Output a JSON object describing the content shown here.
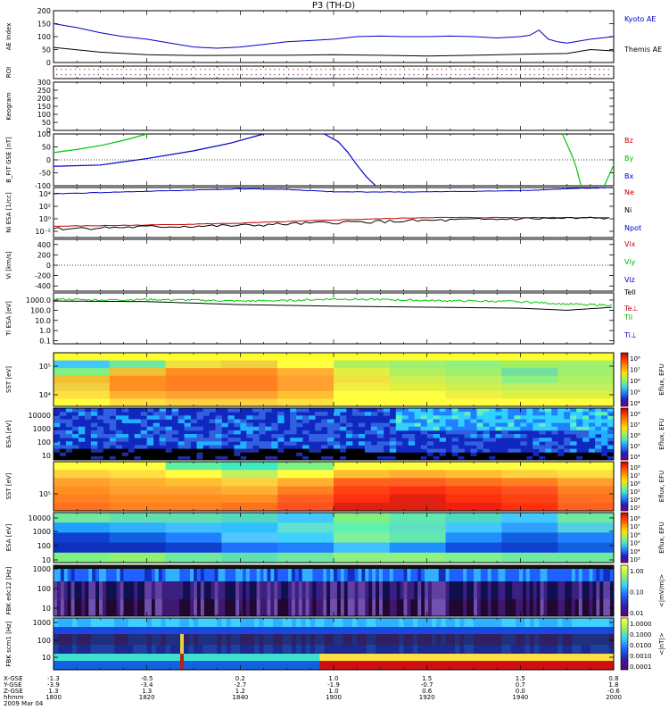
{
  "title": "P3 (TH-D)",
  "date_label": "2009 Mar 04",
  "chart_data": {
    "type": "line",
    "title": "P3 (TH-D)",
    "x": {
      "label": "hhmm",
      "ticks": [
        "1800",
        "1820",
        "1840",
        "1900",
        "1920",
        "1940",
        "2000"
      ],
      "range": [
        1800,
        2000
      ],
      "ephemeris": [
        {
          "name": "X-GSE",
          "values": [
            "-1.3",
            "-0.5",
            "0.2",
            "1.0",
            "1.5",
            "1.5",
            "0.8"
          ]
        },
        {
          "name": "Y-GSE",
          "values": [
            "-3.9",
            "-3.4",
            "-2.7",
            "-1.9",
            "-0.7",
            "0.7",
            "1.8"
          ]
        },
        {
          "name": "Z-GSE",
          "values": [
            "1.3",
            "1.3",
            "1.2",
            "1.0",
            "0.6",
            "0.0",
            "-0.6"
          ]
        }
      ]
    },
    "panels": [
      {
        "id": "ae",
        "ylabel": "AE Index",
        "ylim": [
          0,
          200
        ],
        "yticks": [
          "200",
          "150",
          "100",
          "50",
          "0"
        ],
        "legend": [
          {
            "name": "Kyoto AE",
            "color": "#0000c8"
          },
          {
            "name": "Themis AE",
            "color": "#000000"
          }
        ],
        "series": [
          {
            "name": "Kyoto AE",
            "color": "#0000c8",
            "x": [
              1800,
              1805,
              1810,
              1815,
              1820,
              1825,
              1830,
              1835,
              1840,
              1845,
              1850,
              1855,
              1900,
              1905,
              1910,
              1915,
              1920,
              1925,
              1930,
              1935,
              1940,
              1942,
              1944,
              1946,
              1948,
              1950,
              1955,
              2000
            ],
            "y": [
              150,
              135,
              115,
              100,
              90,
              75,
              60,
              55,
              60,
              70,
              80,
              85,
              90,
              100,
              102,
              100,
              100,
              102,
              100,
              95,
              100,
              105,
              125,
              90,
              80,
              75,
              90,
              100
            ]
          },
          {
            "name": "Themis AE",
            "color": "#000000",
            "x": [
              1800,
              1810,
              1820,
              1830,
              1840,
              1850,
              1900,
              1910,
              1920,
              1930,
              1940,
              1950,
              1955,
              2000
            ],
            "y": [
              58,
              40,
              30,
              27,
              28,
              28,
              30,
              28,
              25,
              28,
              32,
              35,
              50,
              45
            ]
          }
        ]
      },
      {
        "id": "roi",
        "ylabel": "ROI"
      },
      {
        "id": "keogram",
        "ylabel": "Keogram",
        "ylim": [
          0,
          300
        ],
        "yticks": [
          "300",
          "250",
          "200",
          "150",
          "100",
          "50",
          "0"
        ]
      },
      {
        "id": "bfit",
        "ylabel": "B_FIT GSE [nT]",
        "ylim": [
          -100,
          100
        ],
        "yticks": [
          "100",
          "50",
          "0",
          "-50",
          "-100"
        ],
        "legend": [
          {
            "name": "Bz",
            "color": "#c80000"
          },
          {
            "name": "By",
            "color": "#00b400"
          },
          {
            "name": "Bx",
            "color": "#0000c8"
          }
        ],
        "series": [
          {
            "name": "By",
            "color": "#00c800",
            "segments": [
              {
                "x": [
                  1800,
                  1805,
                  1810,
                  1815,
                  1820
                ],
                "y": [
                  28,
                  40,
                  55,
                  75,
                  100
                ]
              },
              {
                "x": [
                  1949,
                  1950,
                  1951,
                  1952,
                  1953
                ],
                "y": [
                  100,
                  60,
                  20,
                  -30,
                  -100
                ]
              },
              {
                "x": [
                  1958,
                  1959,
                  1960
                ],
                "y": [
                  -100,
                  -60,
                  -20
                ]
              }
            ]
          },
          {
            "name": "Bx",
            "color": "#0000c8",
            "segments": [
              {
                "x": [
                  1800,
                  1810,
                  1820,
                  1830,
                  1838,
                  1845
                ],
                "y": [
                  -25,
                  -20,
                  5,
                  35,
                  65,
                  100
                ]
              },
              {
                "x": [
                  1858,
                  1901,
                  1903,
                  1905,
                  1907,
                  1909
                ],
                "y": [
                  100,
                  70,
                  30,
                  -20,
                  -65,
                  -100
                ]
              }
            ]
          }
        ]
      },
      {
        "id": "ni",
        "ylabel": "Ni ESA [1/cc]",
        "log": true,
        "ylim": [
          -3,
          5
        ],
        "yticks": [
          "10⁴",
          "10²",
          "10⁰",
          "10⁻²"
        ],
        "legend": [
          {
            "name": "Ne",
            "color": "#c80000"
          },
          {
            "name": "Ni",
            "color": "#000000"
          },
          {
            "name": "Npot",
            "color": "#0000c8"
          }
        ],
        "series": [
          {
            "name": "Npot",
            "color": "#0000c8",
            "x": [
              1800,
              1820,
              1840,
              1850,
              1900,
              1920,
              1940,
              1950,
              2000
            ],
            "y": [
              4.0,
              4.4,
              4.8,
              4.7,
              4.3,
              4.3,
              4.5,
              4.8,
              5.0
            ]
          },
          {
            "name": "Ne",
            "color": "#c80000",
            "x": [
              1800,
              1820,
              1840,
              1900,
              1920,
              1940,
              2000
            ],
            "y": [
              -1.2,
              -1.0,
              -0.7,
              -0.2,
              0.2,
              0.2,
              0.2
            ]
          },
          {
            "name": "Ni",
            "color": "#000000",
            "x": [
              1800,
              1820,
              1840,
              1900,
              1920,
              1940,
              2000
            ],
            "y": [
              -1.6,
              -1.3,
              -1.1,
              -0.6,
              -0.3,
              0.0,
              0.1
            ]
          }
        ]
      },
      {
        "id": "vi",
        "ylabel": "Vi [km/s]",
        "ylim": [
          -500,
          500
        ],
        "yticks": [
          "400",
          "200",
          "0",
          "-200",
          "-400"
        ],
        "legend": [
          {
            "name": "Vix",
            "color": "#c80000"
          },
          {
            "name": "Viy",
            "color": "#00b400"
          },
          {
            "name": "Viz",
            "color": "#0000c8"
          }
        ]
      },
      {
        "id": "ti",
        "ylabel": "Ti ESA [eV]",
        "log": true,
        "ylim": [
          -1.3,
          3.7
        ],
        "yticks": [
          "1000.0",
          "100.0",
          "10.0",
          "1.0",
          "0.1"
        ],
        "legend": [
          {
            "name": "Tell",
            "color": "#000000"
          },
          {
            "name": "Te⊥",
            "color": "#c80000"
          },
          {
            "name": "Til",
            "color": "#00b400"
          },
          {
            "name": "Ti⊥",
            "color": "#0000c8"
          }
        ],
        "series": [
          {
            "name": "Til",
            "color": "#00c800",
            "x": [
              1800,
              1810,
              1820,
              1830,
              1840,
              1850,
              1900,
              1910,
              1920,
              1930,
              1940,
              1950,
              2000
            ],
            "y": [
              3.1,
              3.0,
              3.05,
              3.0,
              2.9,
              2.95,
              3.1,
              3.05,
              2.95,
              2.9,
              2.85,
              2.6,
              2.5
            ]
          },
          {
            "name": "Tell",
            "color": "#000000",
            "x": [
              1800,
              1820,
              1840,
              1900,
              1920,
              1940,
              1950,
              2000
            ],
            "y": [
              2.9,
              2.85,
              2.55,
              2.4,
              2.3,
              2.2,
              2.0,
              2.3
            ]
          }
        ]
      },
      {
        "id": "sst_i",
        "ylabel": "SST [eV]",
        "yticks": [
          "10⁵",
          "10⁴"
        ],
        "cbar_ticks": [
          "10⁸",
          "10⁷",
          "10⁶",
          "10⁵",
          "10⁴"
        ],
        "cbar_label": "Eflux, EFU"
      },
      {
        "id": "esa_i",
        "ylabel": "ESA [eV]",
        "yticks": [
          "10000",
          "1000",
          "100",
          "10"
        ],
        "cbar_ticks": [
          "10⁸",
          "10⁷",
          "10⁶",
          "10⁵",
          "10⁴"
        ],
        "cbar_label": "Eflux, EFU"
      },
      {
        "id": "sst_e",
        "ylabel": "SST [eV]",
        "yticks": [
          "10⁵"
        ],
        "cbar_ticks": [
          "10⁸",
          "10⁷",
          "10⁶",
          "10⁵",
          "10⁴",
          "10³"
        ],
        "cbar_label": "Eflux, EFU"
      },
      {
        "id": "esa_e",
        "ylabel": "ESA [eV]",
        "yticks": [
          "10000",
          "1000",
          "100",
          "10"
        ],
        "cbar_ticks": [
          "10⁸",
          "10⁷",
          "10⁶",
          "10⁵",
          "10⁴",
          "10³"
        ],
        "cbar_label": "Eflux, EFU"
      },
      {
        "id": "fbk1",
        "ylabel": "FBK edc12 [Hz]",
        "yticks": [
          "1000",
          "100",
          "10"
        ],
        "cbar_ticks": [
          "1.00",
          "0.10",
          "0.01"
        ],
        "cbar_label": "<|mV/m|>"
      },
      {
        "id": "fbk2",
        "ylabel": "FBK scm1 [Hz]",
        "yticks": [
          "1000",
          "100",
          "10"
        ],
        "cbar_ticks": [
          "1.0000",
          "0.1000",
          "0.0100",
          "0.0010",
          "0.0001"
        ],
        "cbar_label": "<|nT|>"
      }
    ]
  }
}
